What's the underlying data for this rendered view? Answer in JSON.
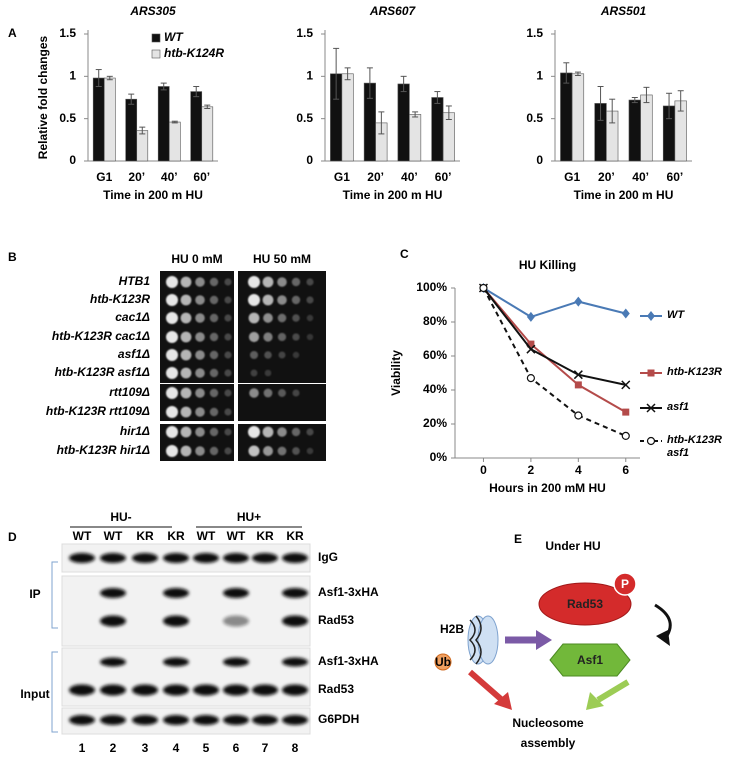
{
  "panel_labels": [
    "A",
    "B",
    "C",
    "D",
    "E"
  ],
  "chart_data": [
    {
      "type": "bar",
      "title": "ARS305",
      "y_label": "Relative fold changes",
      "x_label": "Time in 200 m HU",
      "categories": [
        "G1",
        "20’",
        "40’",
        "60’"
      ],
      "series": [
        {
          "name": "WT",
          "color": "#111111",
          "values": [
            0.98,
            0.73,
            0.88,
            0.82
          ],
          "errors": [
            0.1,
            0.06,
            0.04,
            0.06
          ]
        },
        {
          "name": "htb-K124R",
          "color": "#e4e4e4",
          "values": [
            0.98,
            0.36,
            0.46,
            0.64
          ],
          "errors": [
            0.02,
            0.04,
            0.01,
            0.02
          ]
        }
      ],
      "ylim": [
        0,
        1.5
      ],
      "yticks": [
        0,
        0.5,
        1,
        1.5
      ],
      "legend": "upper right"
    },
    {
      "type": "bar",
      "title": "ARS607",
      "x_label": "Time in 200 m HU",
      "categories": [
        "G1",
        "20’",
        "40’",
        "60’"
      ],
      "series": [
        {
          "color": "#111111",
          "values": [
            1.03,
            0.92,
            0.91,
            0.75
          ],
          "errors": [
            0.3,
            0.18,
            0.09,
            0.07
          ]
        },
        {
          "color": "#e4e4e4",
          "values": [
            1.03,
            0.45,
            0.55,
            0.57
          ],
          "errors": [
            0.07,
            0.13,
            0.03,
            0.08
          ]
        }
      ],
      "ylim": [
        0,
        1.5
      ],
      "yticks": [
        0,
        0.5,
        1,
        1.5
      ]
    },
    {
      "type": "bar",
      "title": "ARS501",
      "x_label": "Time in 200 m HU",
      "categories": [
        "G1",
        "20’",
        "40’",
        "60’"
      ],
      "series": [
        {
          "color": "#111111",
          "values": [
            1.04,
            0.68,
            0.72,
            0.65
          ],
          "errors": [
            0.12,
            0.2,
            0.03,
            0.15
          ]
        },
        {
          "color": "#e4e4e4",
          "values": [
            1.03,
            0.59,
            0.78,
            0.71
          ],
          "errors": [
            0.02,
            0.14,
            0.09,
            0.12
          ]
        }
      ],
      "ylim": [
        0,
        1.5
      ],
      "yticks": [
        0,
        0.5,
        1,
        1.5
      ]
    },
    {
      "type": "line",
      "title": "HU Killing",
      "y_label": "Viability",
      "x_label": "Hours in 200 mM HU",
      "x": [
        0,
        2,
        4,
        6
      ],
      "xlim": [
        -1.2,
        6.6
      ],
      "xticks": [
        0,
        2,
        4,
        6
      ],
      "ylim": [
        0,
        100
      ],
      "yticks": [
        {
          "value": 0,
          "label": "0%"
        },
        {
          "value": 20,
          "label": "20%"
        },
        {
          "value": 40,
          "label": "40%"
        },
        {
          "value": 60,
          "label": "60%"
        },
        {
          "value": 80,
          "label": "80%"
        },
        {
          "value": 100,
          "label": "100%"
        }
      ],
      "series": [
        {
          "name": "WT",
          "color": "#4a7ab5",
          "marker": "diamond",
          "dash": false,
          "values": [
            100,
            83,
            92,
            85
          ]
        },
        {
          "name": "htb-K123R",
          "color": "#b44b4a",
          "marker": "square",
          "dash": false,
          "values": [
            100,
            67,
            43,
            27
          ]
        },
        {
          "name": "asf1",
          "color": "#111111",
          "marker": "x",
          "dash": false,
          "values": [
            100,
            64,
            49,
            43
          ]
        },
        {
          "name": "htb-K123R asf1",
          "color": "#111111",
          "marker": "circle",
          "dash": true,
          "values": [
            100,
            47,
            25,
            13
          ]
        }
      ],
      "legend": "right"
    }
  ],
  "spot_assay": {
    "conditions": [
      "HU 0 mM",
      "HU 50 mM"
    ],
    "strains": [
      "HTB1",
      "htb-K123R",
      "cac1Δ",
      "htb-K123R cac1Δ",
      "asf1Δ",
      "htb-K123R asf1Δ",
      "rtt109Δ",
      "htb-K123R rtt109Δ",
      "hir1Δ",
      "htb-K123R hir1Δ"
    ]
  },
  "western_blot": {
    "groups": [
      "HU-",
      "HU+"
    ],
    "lanes": [
      "WT",
      "WT",
      "KR",
      "KR",
      "WT",
      "WT",
      "KR",
      "KR"
    ],
    "lane_numbers": [
      "1",
      "2",
      "3",
      "4",
      "5",
      "6",
      "7",
      "8"
    ],
    "sections": [
      "IP",
      "Input"
    ],
    "bands": [
      "IgG",
      "Asf1-3xHA",
      "Rad53",
      "Asf1-3xHA",
      "Rad53",
      "G6PDH"
    ]
  },
  "model": {
    "title": "Under HU",
    "kinase": "Rad53",
    "phospho": "P",
    "chaperone": "Asf1",
    "histone": "H2B",
    "ubiquitin": "Ub",
    "outcome_lines": [
      "Nucleosome",
      "assembly"
    ]
  }
}
